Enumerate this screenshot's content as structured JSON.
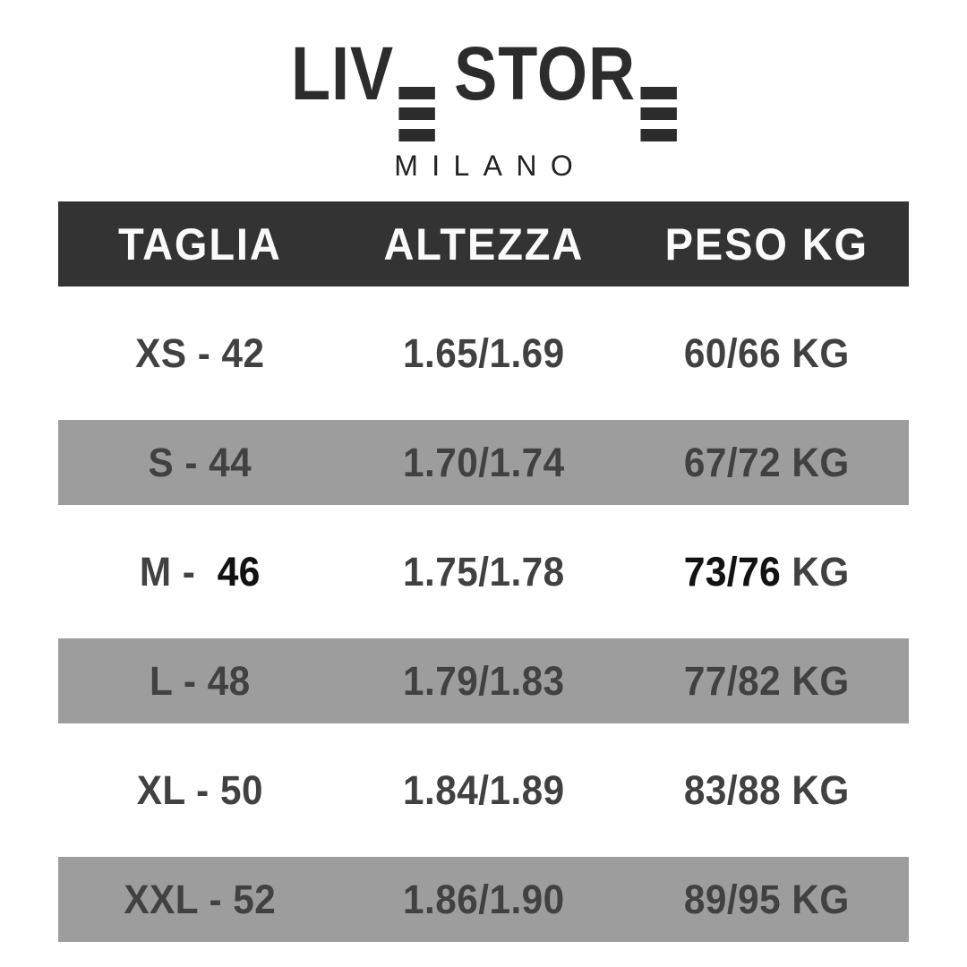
{
  "page": {
    "background": "#ffffff"
  },
  "logo": {
    "brand_part1": "LIV",
    "brand_part2": "STOR",
    "brand_full": "LIVE STORE",
    "subtitle": "MILANO",
    "color": "#2c2c2c"
  },
  "chart_data": {
    "type": "table",
    "title": "LIVE STORE MILANO",
    "columns": [
      "TAGLIA",
      "ALTEZZA",
      "PESO KG"
    ],
    "rows": [
      [
        "XS - 42",
        "1.65/1.69",
        "60/66 KG"
      ],
      [
        "S - 44",
        "1.70/1.74",
        "67/72 KG"
      ],
      [
        "M -  46",
        "1.75/1.78",
        "73/76 KG"
      ],
      [
        "L - 48",
        "1.79/1.83",
        "77/82 KG"
      ],
      [
        "XL - 50",
        "1.84/1.89",
        "83/88 KG"
      ],
      [
        "XXL - 52",
        "1.86/1.90",
        "89/95 KG"
      ]
    ]
  },
  "table_style": {
    "header_bg": "#333333",
    "header_text_color": "#fafafa",
    "stripe_bg": "#9d9d9d",
    "row_text_color": "#414141",
    "emphasis_color": "#121212",
    "striped_row_indexes": [
      1,
      3,
      5
    ],
    "bold_segments": {
      "2": [
        "46",
        "73/76"
      ]
    }
  }
}
